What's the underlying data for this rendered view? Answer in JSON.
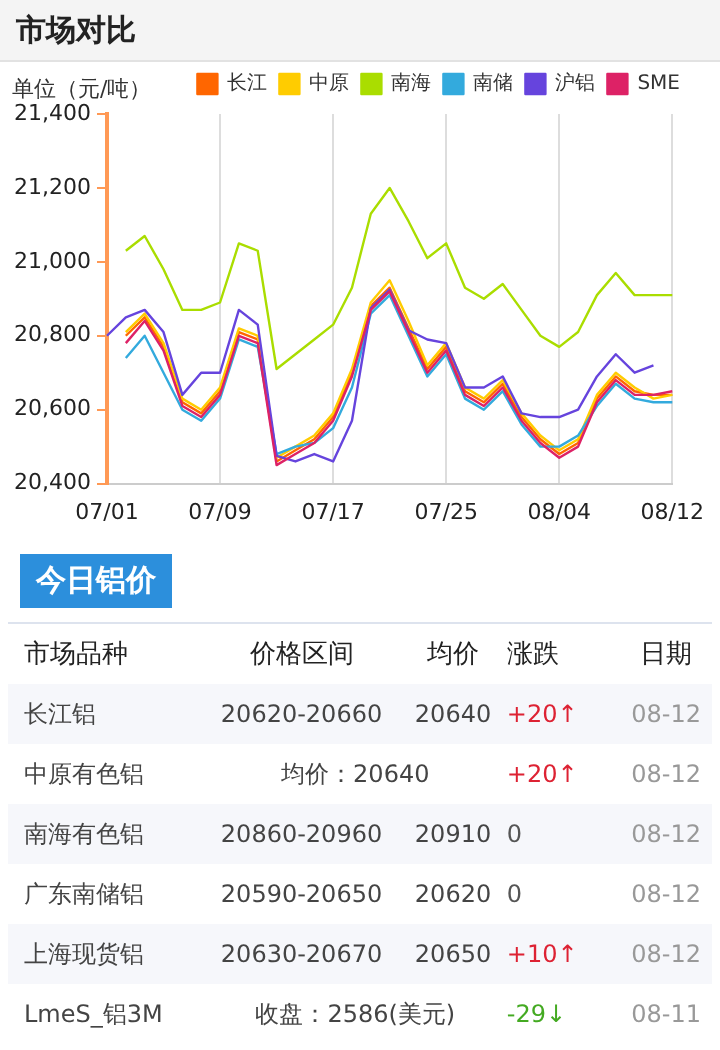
{
  "chart_data": [
    {
      "type": "line",
      "title": "市场对比",
      "ylabel": "单位（元/吨）",
      "categories": [
        "07/01",
        null,
        null,
        null,
        null,
        null,
        "07/09",
        null,
        null,
        null,
        null,
        null,
        "07/17",
        null,
        null,
        null,
        null,
        null,
        "07/25",
        null,
        null,
        null,
        null,
        null,
        "08/04",
        null,
        null,
        null,
        null,
        null,
        "08/12"
      ],
      "series": [
        {
          "name": "长江",
          "color": "#ff6600",
          "values": [
            null,
            20800,
            20850,
            20770,
            20620,
            20590,
            20650,
            20810,
            20790,
            20460,
            20490,
            20520,
            20580,
            20700,
            20880,
            20930,
            20820,
            20710,
            20770,
            20650,
            20620,
            20670,
            20580,
            20520,
            20480,
            20510,
            20630,
            20690,
            20650,
            20640,
            20640
          ]
        },
        {
          "name": "中原",
          "color": "#ffcc00",
          "values": [
            null,
            20810,
            20860,
            20780,
            20630,
            20600,
            20660,
            20820,
            20800,
            20470,
            20500,
            20530,
            20590,
            20710,
            20890,
            20950,
            20840,
            20720,
            20780,
            20660,
            20630,
            20680,
            20590,
            20530,
            20490,
            20520,
            20640,
            20700,
            20660,
            20630,
            20640
          ]
        },
        {
          "name": "南海",
          "color": "#aadd00",
          "values": [
            null,
            21030,
            21070,
            20980,
            20870,
            20870,
            20890,
            21050,
            21030,
            20710,
            20750,
            20790,
            20830,
            20930,
            21130,
            21200,
            21110,
            21010,
            21050,
            20930,
            20900,
            20940,
            20870,
            20800,
            20770,
            20810,
            20910,
            20970,
            20910,
            20910,
            20910
          ]
        },
        {
          "name": "南储",
          "color": "#33aadd",
          "values": [
            null,
            20740,
            20800,
            20700,
            20600,
            20570,
            20630,
            20790,
            20770,
            20480,
            20500,
            20510,
            20550,
            20660,
            20860,
            20910,
            20800,
            20690,
            20750,
            20630,
            20600,
            20650,
            20560,
            20500,
            20500,
            20530,
            20610,
            20670,
            20630,
            20620,
            20620
          ]
        },
        {
          "name": "沪铝",
          "color": "#6644dd",
          "values": [
            20800,
            20850,
            20870,
            20810,
            20640,
            20700,
            20700,
            20870,
            20830,
            20475,
            20460,
            20480,
            20460,
            20570,
            20875,
            20925,
            20815,
            20790,
            20780,
            20660,
            20660,
            20690,
            20590,
            20580,
            20580,
            20600,
            20690,
            20750,
            20700,
            20720,
            null
          ]
        },
        {
          "name": "SME",
          "color": "#dd2266",
          "values": [
            null,
            20780,
            20840,
            20760,
            20610,
            20580,
            20640,
            20800,
            20780,
            20450,
            20480,
            20510,
            20570,
            20690,
            20870,
            20920,
            20810,
            20700,
            20760,
            20640,
            20610,
            20660,
            20570,
            20510,
            20470,
            20500,
            20620,
            20680,
            20640,
            20640,
            20650
          ]
        }
      ],
      "ylim": [
        20400,
        21400
      ],
      "yticks": [
        {
          "value": 20400,
          "label": "20,400"
        },
        {
          "value": 20600,
          "label": "20,600"
        },
        {
          "value": 20800,
          "label": "20,800"
        },
        {
          "value": 21000,
          "label": "21,000"
        },
        {
          "value": 21200,
          "label": "21,200"
        },
        {
          "value": 21400,
          "label": "21,400"
        }
      ],
      "grid": "x",
      "legend": "top",
      "marker": "none",
      "line_style": "solid"
    },
    {
      "type": "other",
      "title": "今日铝价",
      "annotations": [
        "市场品种",
        "价格区间",
        "均价",
        "涨跌",
        "日期",
        "长江铝",
        "20620-20660",
        "20640",
        "+20↑",
        "08-12",
        "中原有色铝",
        "均价：20640",
        "+20↑",
        "08-12",
        "南海有色铝",
        "20860-20960",
        "20910",
        "0",
        "08-12",
        "广东南储铝",
        "20590-20650",
        "20620",
        "0",
        "08-12",
        "上海现货铝",
        "20630-20670",
        "20650",
        "+10↑",
        "08-12",
        "LmeS_铝3M",
        "收盘：2586(美元)",
        "-29↓",
        "08-11"
      ]
    }
  ]
}
